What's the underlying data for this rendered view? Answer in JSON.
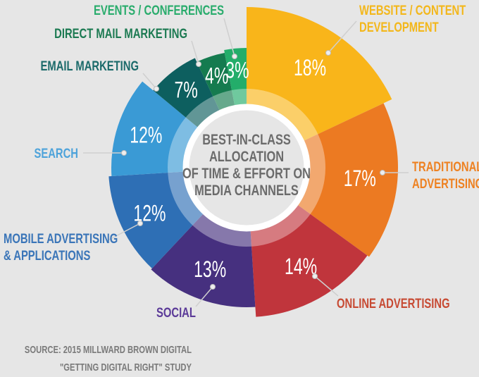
{
  "chart_data": {
    "type": "pie",
    "variant": "donut with varying slice radii",
    "start": "top, clockwise",
    "center_text": [
      "BEST-IN-CLASS",
      "ALLOCATION",
      "OF TIME & EFFORT ON",
      "MEDIA CHANNELS"
    ],
    "slices": [
      {
        "label": [
          "WEBSITE / CONTENT",
          "DEVELOPMENT"
        ],
        "value": 18,
        "value_label": "18%",
        "color": "#f9b51a",
        "label_color": "#f3b71b"
      },
      {
        "label": [
          "TRADITIONAL",
          "ADVERTISING"
        ],
        "value": 17,
        "value_label": "17%",
        "color": "#ec7a22",
        "label_color": "#ee8121"
      },
      {
        "label": [
          "ONLINE ADVERTISING"
        ],
        "value": 14,
        "value_label": "14%",
        "color": "#c0353c",
        "label_color": "#c74a33"
      },
      {
        "label": [
          "SOCIAL"
        ],
        "value": 13,
        "value_label": "13%",
        "color": "#46307f",
        "label_color": "#5b3a98"
      },
      {
        "label": [
          "MOBILE ADVERTISING",
          "& APPLICATIONS"
        ],
        "value": 12,
        "value_label": "12%",
        "color": "#2e6fb5",
        "label_color": "#3a75b8"
      },
      {
        "label": [
          "SEARCH"
        ],
        "value": 12,
        "value_label": "12%",
        "color": "#3a9ad5",
        "label_color": "#4ea3da"
      },
      {
        "label": [
          "EMAIL MARKETING"
        ],
        "value": 7,
        "value_label": "7%",
        "color": "#0d5f5f",
        "label_color": "#1b6a6a"
      },
      {
        "label": [
          "DIRECT MAIL MARKETING"
        ],
        "value": 4,
        "value_label": "4%",
        "color": "#157b4f",
        "label_color": "#1c7a52"
      },
      {
        "label": [
          "EVENTS / CONFERENCES"
        ],
        "value": 3,
        "value_label": "3%",
        "color": "#23ad6a",
        "label_color": "#29ac6c"
      }
    ],
    "source": [
      "SOURCE: 2015 MILLWARD BROWN DIGITAL",
      "\"GETTING DIGITAL RIGHT\" STUDY"
    ],
    "background": "#e6e6e6"
  }
}
